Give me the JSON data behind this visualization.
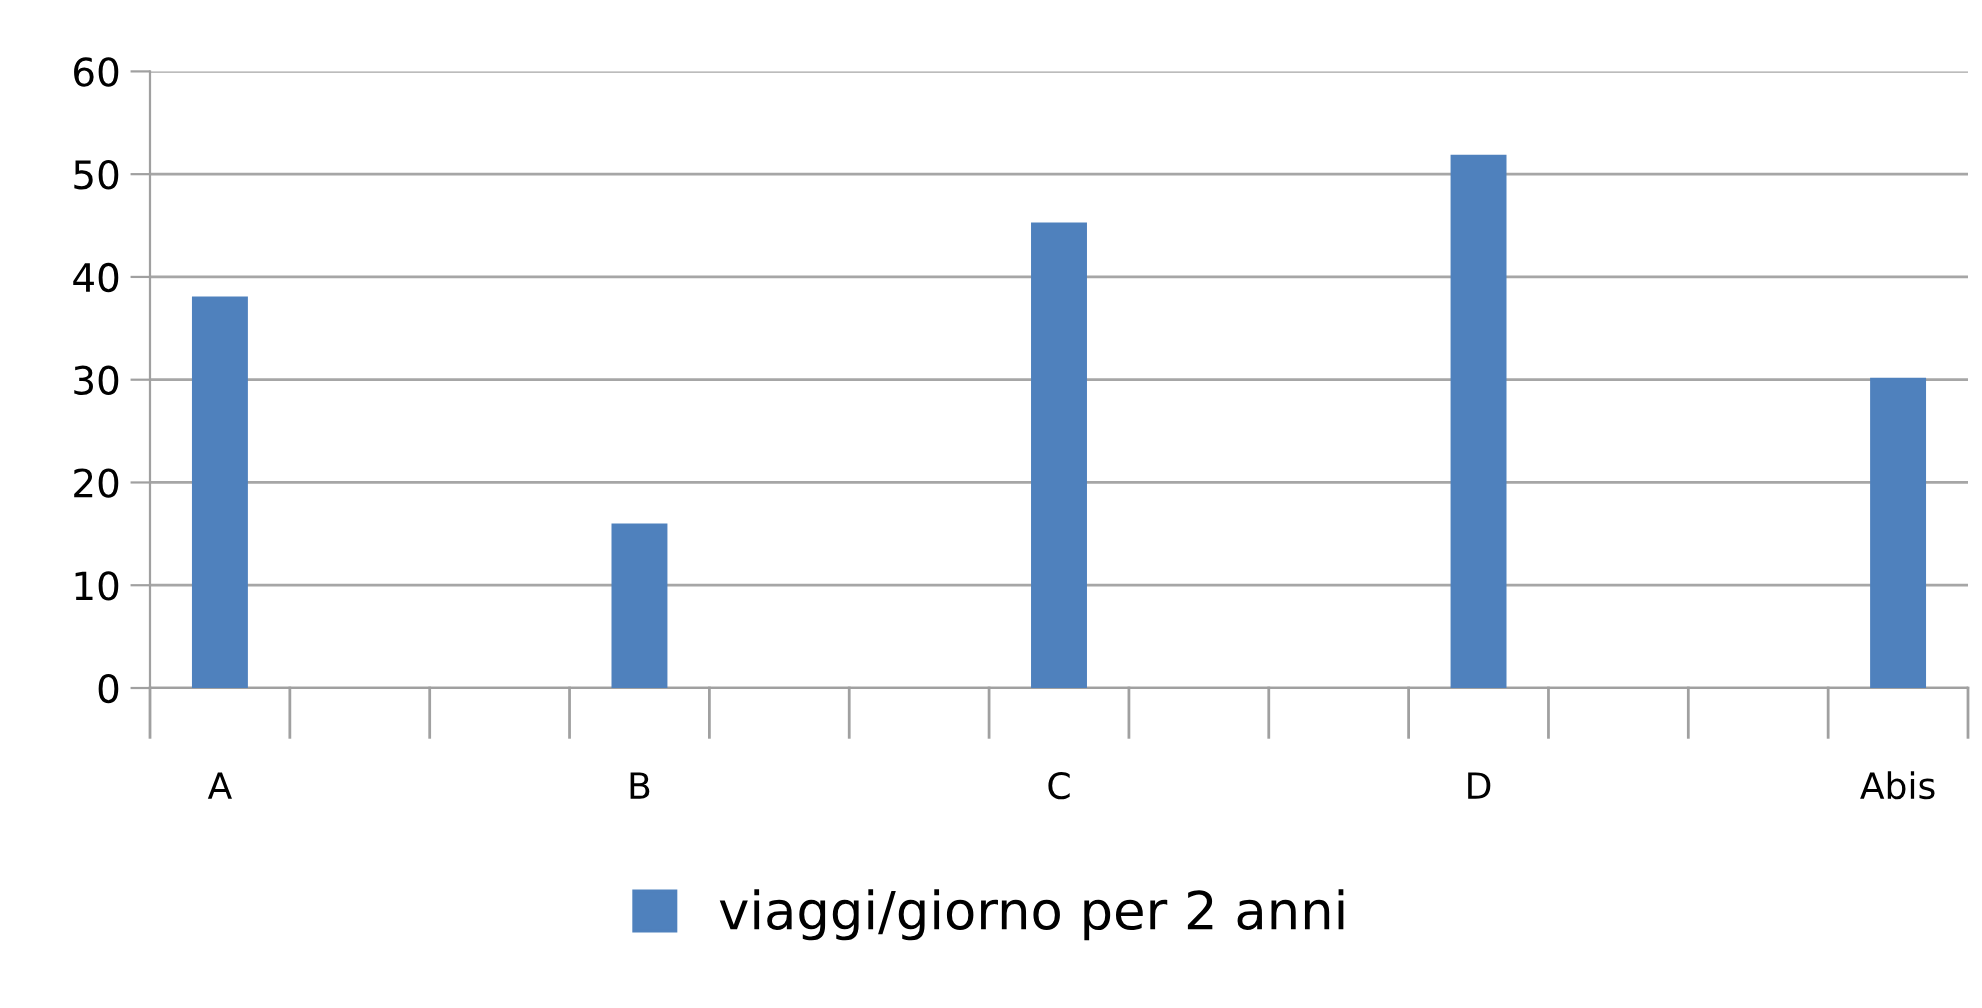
{
  "chart_data": {
    "type": "bar",
    "categories": [
      "A",
      null,
      null,
      "B",
      null,
      null,
      "C",
      null,
      null,
      "D",
      null,
      null,
      "Abis"
    ],
    "series": [
      {
        "name": "viaggi/giorno per 2 anni",
        "color": "#4f81bd",
        "values": [
          38.1,
          null,
          null,
          16.0,
          null,
          null,
          45.3,
          null,
          null,
          51.9,
          null,
          null,
          30.2
        ]
      }
    ],
    "ylim": [
      0,
      60
    ],
    "yticks": [
      0,
      10,
      20,
      30,
      40,
      50,
      60
    ],
    "grid": "y",
    "legend": "bottom"
  }
}
